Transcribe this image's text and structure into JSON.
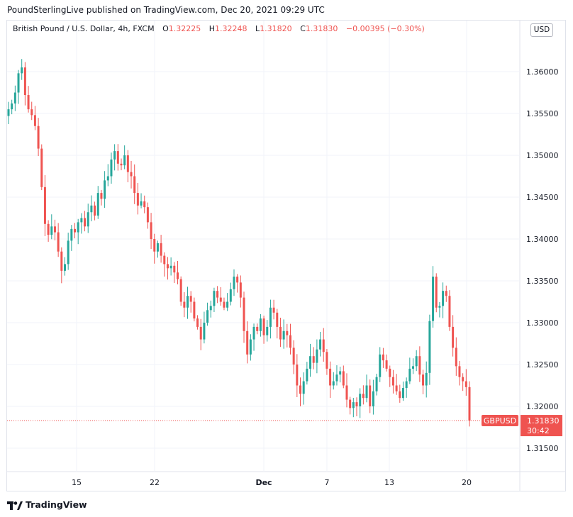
{
  "header": {
    "published": "PoundSterlingLive published on TradingView.com, Dec 20, 2021 09:29 UTC"
  },
  "legend": {
    "symbol": "British Pound / U.S. Dollar, 4h, FXCM",
    "o_label": "O",
    "o_value": "1.32225",
    "h_label": "H",
    "h_value": "1.32248",
    "l_label": "L",
    "l_value": "1.31820",
    "c_label": "C",
    "c_value": "1.31830",
    "change": "−0.00395 (−0.30%)"
  },
  "currency_button": "USD",
  "price_tag": {
    "symbol": "GBPUSD",
    "price": "1.31830",
    "countdown": "30:42"
  },
  "brand": {
    "name": "TradingView",
    "icon": "tradingview-logo-icon"
  },
  "colors": {
    "up": "#26a69a",
    "down": "#ef5350",
    "grid": "#f0f3fa",
    "text": "#131722"
  },
  "chart_data": {
    "type": "candlestick",
    "interval": "4h",
    "ylim": [
      1.31,
      1.365
    ],
    "y_ticks": [
      "1.31500",
      "1.32000",
      "1.32500",
      "1.33000",
      "1.33500",
      "1.34000",
      "1.34500",
      "1.35000",
      "1.35500",
      "1.36000"
    ],
    "x_ticks": [
      "15",
      "22",
      "Dec",
      "7",
      "13",
      "20"
    ],
    "last_price": 1.3183,
    "grid": true,
    "closes": [
      1.3555,
      1.3562,
      1.3575,
      1.3598,
      1.3605,
      1.3572,
      1.3555,
      1.3548,
      1.3535,
      1.3508,
      1.3462,
      1.3418,
      1.3405,
      1.3415,
      1.3408,
      1.3385,
      1.3362,
      1.337,
      1.3398,
      1.3412,
      1.3408,
      1.342,
      1.3425,
      1.3415,
      1.3432,
      1.344,
      1.3428,
      1.3455,
      1.3448,
      1.347,
      1.3475,
      1.3495,
      1.3505,
      1.349,
      1.3488,
      1.35,
      1.348,
      1.3475,
      1.3455,
      1.344,
      1.3445,
      1.3438,
      1.342,
      1.34,
      1.3385,
      1.3395,
      1.338,
      1.337,
      1.3365,
      1.3368,
      1.336,
      1.3352,
      1.3325,
      1.3318,
      1.3332,
      1.3325,
      1.3305,
      1.3295,
      1.328,
      1.33,
      1.3315,
      1.332,
      1.3338,
      1.333,
      1.3325,
      1.3318,
      1.3325,
      1.334,
      1.3355,
      1.3348,
      1.333,
      1.329,
      1.3262,
      1.328,
      1.3295,
      1.329,
      1.3305,
      1.3285,
      1.3295,
      1.3318,
      1.3312,
      1.3295,
      1.328,
      1.329,
      1.3285,
      1.327,
      1.325,
      1.3225,
      1.3215,
      1.323,
      1.3245,
      1.326,
      1.3252,
      1.3268,
      1.328,
      1.3265,
      1.3245,
      1.3225,
      1.323,
      1.3238,
      1.3242,
      1.3225,
      1.3208,
      1.3198,
      1.3205,
      1.32,
      1.3215,
      1.321,
      1.3225,
      1.32,
      1.3218,
      1.3235,
      1.3262,
      1.3255,
      1.3245,
      1.3235,
      1.3225,
      1.3218,
      1.321,
      1.3222,
      1.323,
      1.3245,
      1.3248,
      1.326,
      1.3238,
      1.3225,
      1.324,
      1.3302,
      1.3355,
      1.3318,
      1.332,
      1.3338,
      1.3332,
      1.3295,
      1.327,
      1.3248,
      1.3235,
      1.323,
      1.3223,
      1.3183
    ]
  }
}
